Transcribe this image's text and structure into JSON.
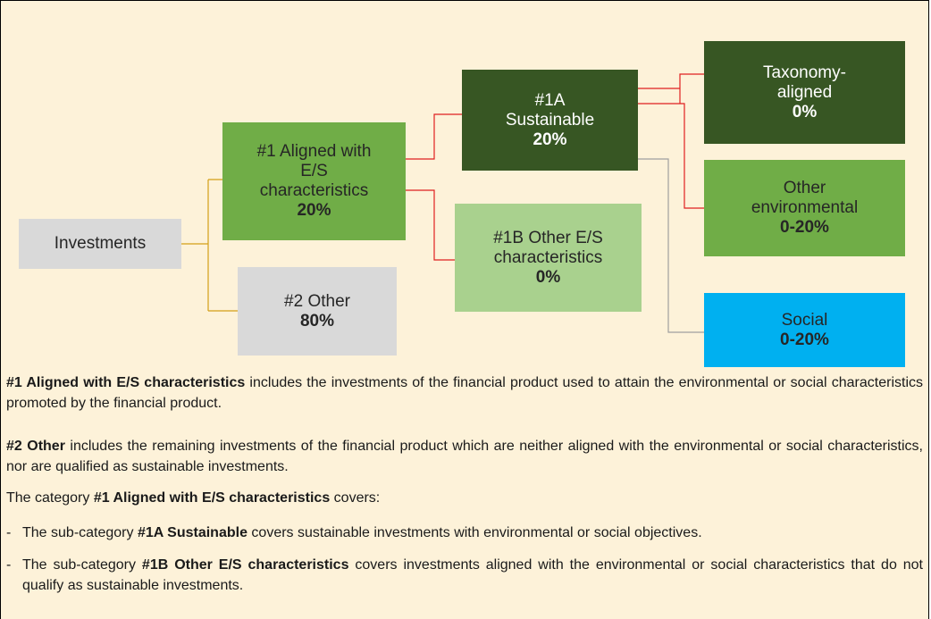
{
  "nodes": [
    {
      "lines": [
        "Investments"
      ],
      "value": null,
      "color": "#d9d9d9",
      "text_color": "#262626"
    },
    {
      "lines": [
        "#1 Aligned with",
        "E/S",
        "characteristics"
      ],
      "value": "20%",
      "color": "#70ad47",
      "text_color": "#262626"
    },
    {
      "lines": [
        "#2 Other"
      ],
      "value": "80%",
      "color": "#d9d9d9",
      "text_color": "#262626"
    },
    {
      "lines": [
        "#1A",
        "Sustainable"
      ],
      "value": "20%",
      "color": "#375623",
      "text_color": "#ffffff"
    },
    {
      "lines": [
        "#1B Other E/S",
        "characteristics"
      ],
      "value": "0%",
      "color": "#a9d18e",
      "text_color": "#262626"
    },
    {
      "lines": [
        "Taxonomy-",
        "aligned"
      ],
      "value": "0%",
      "color": "#375623",
      "text_color": "#ffffff"
    },
    {
      "lines": [
        "Other",
        "environmental"
      ],
      "value": "0-20%",
      "color": "#70ad47",
      "text_color": "#262626"
    },
    {
      "lines": [
        "Social"
      ],
      "value": "0-20%",
      "color": "#00b0f0",
      "text_color": "#262626"
    }
  ],
  "paragraphs": [
    {
      "runs": [
        {
          "text": "#1 Aligned with E/S characteristics",
          "bold": true
        },
        {
          "text": " includes the investments of the financial product used to attain the environmental or social characteristics promoted by the financial product.",
          "bold": false
        }
      ]
    },
    {
      "runs": [
        {
          "text": "#2 Other",
          "bold": true
        },
        {
          "text": " includes the remaining investments of the financial product which are neither aligned with the environmental or social characteristics, nor are qualified as sustainable investments.",
          "bold": false
        }
      ]
    },
    {
      "runs": [
        {
          "text": "The category ",
          "bold": false
        },
        {
          "text": "#1 Aligned with E/S characteristics",
          "bold": true
        },
        {
          "text": " covers:",
          "bold": false
        }
      ]
    },
    {
      "marker": "-",
      "runs": [
        {
          "text": "The sub-category ",
          "bold": false
        },
        {
          "text": "#1A Sustainable",
          "bold": true
        },
        {
          "text": " covers sustainable investments with environmental or social objectives.",
          "bold": false
        }
      ]
    },
    {
      "marker": "-",
      "runs": [
        {
          "text": "The sub-category ",
          "bold": false
        },
        {
          "text": "#1B Other E/S characteristics",
          "bold": true
        },
        {
          "text": " covers investments aligned with the environmental or social characteristics that do not qualify as sustainable investments.",
          "bold": false
        }
      ]
    }
  ]
}
